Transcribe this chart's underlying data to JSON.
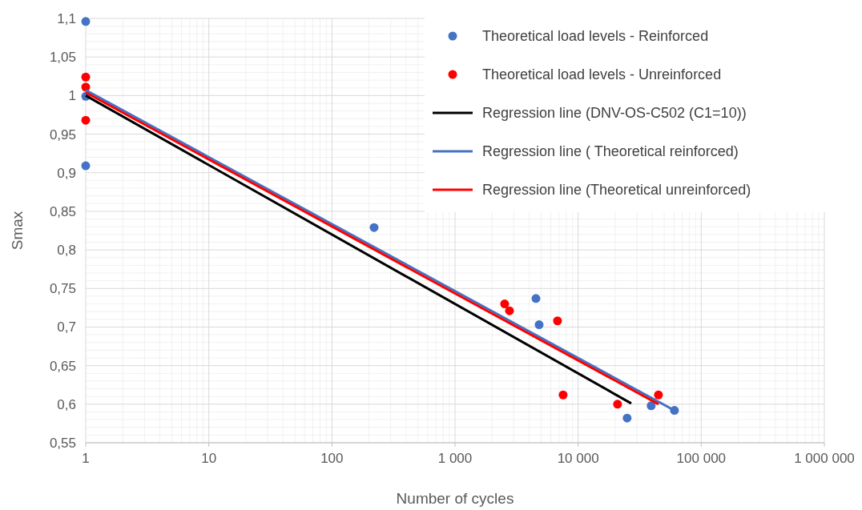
{
  "chart_data": {
    "type": "scatter",
    "xlabel": "Number of cycles",
    "ylabel": "Smax",
    "log": "x",
    "grid": true,
    "legend": "top right",
    "xlim": [
      1,
      1000000
    ],
    "ylim": [
      0.55,
      1.1
    ],
    "xticks": [
      1,
      10,
      100,
      {
        "value": 1000,
        "label": "1 000"
      },
      {
        "value": 10000,
        "label": "10 000"
      },
      {
        "value": 100000,
        "label": "100 000"
      },
      {
        "value": 1000000,
        "label": "1 000 000"
      }
    ],
    "yticks": [
      {
        "value": 0.55,
        "label": "0,55"
      },
      {
        "value": 0.6,
        "label": "0,6"
      },
      {
        "value": 0.65,
        "label": "0,65"
      },
      {
        "value": 0.7,
        "label": "0,7"
      },
      {
        "value": 0.75,
        "label": "0,75"
      },
      {
        "value": 0.8,
        "label": "0,8"
      },
      {
        "value": 0.85,
        "label": "0,85"
      },
      {
        "value": 0.9,
        "label": "0,9"
      },
      {
        "value": 0.95,
        "label": "0,95"
      },
      {
        "value": 1,
        "label": "1"
      },
      {
        "value": 1.05,
        "label": "1,05"
      },
      {
        "value": 1.1,
        "label": "1,1"
      }
    ],
    "series": [
      {
        "name": "Theoretical load levels - Reinforced",
        "marker": "circle",
        "color": "#4472c4",
        "x": [
          1,
          1,
          1,
          220,
          4540,
          4820,
          25000,
          39200,
          60600
        ],
        "values": [
          1.096,
          0.999,
          0.909,
          0.829,
          0.737,
          0.703,
          0.582,
          0.598,
          0.592
        ]
      },
      {
        "name": "Theoretical load levels - Unreinforced",
        "marker": "circle",
        "color": "#ff0000",
        "x": [
          1,
          1,
          1,
          2530,
          2770,
          6800,
          7550,
          20900,
          44900
        ],
        "values": [
          1.024,
          1.011,
          0.968,
          0.73,
          0.721,
          0.708,
          0.612,
          0.6,
          0.612
        ]
      },
      {
        "name": "Regression line (DNV-OS-C502 (C1=10))",
        "type": "line",
        "color": "#000000",
        "x": [
          1,
          27000
        ],
        "values": [
          1.0,
          0.601
        ]
      },
      {
        "name": "Regression line ( Theoretical reinforced)",
        "type": "line",
        "color": "#4472c4",
        "x": [
          1,
          62000
        ],
        "values": [
          1.007,
          0.591
        ]
      },
      {
        "name": "Regression line (Theoretical unreinforced)",
        "type": "line",
        "color": "#ff0000",
        "x": [
          1,
          45000
        ],
        "values": [
          1.004,
          0.6
        ]
      }
    ]
  }
}
